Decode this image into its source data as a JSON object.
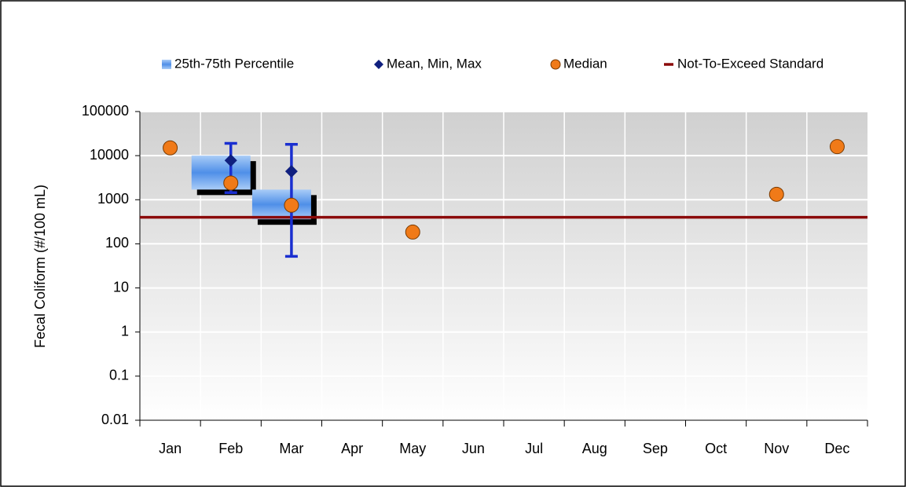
{
  "chart_data": {
    "type": "box",
    "y_label": "Fecal Coliform (#/100 mL)",
    "categories": [
      "Jan",
      "Feb",
      "Mar",
      "Apr",
      "May",
      "Jun",
      "Jul",
      "Aug",
      "Sep",
      "Oct",
      "Nov",
      "Dec"
    ],
    "log_scale": true,
    "ylim": [
      0.01,
      100000
    ],
    "yticks": [
      0.01,
      0.1,
      1,
      10,
      100,
      1000,
      10000,
      100000
    ],
    "grid": true,
    "legend": "top",
    "percentile": {
      "name": "25th-75th Percentile",
      "color": "#4f8fe8",
      "q1": [
        null,
        1700,
        360,
        null,
        null,
        null,
        null,
        null,
        null,
        null,
        null,
        null
      ],
      "q3": [
        null,
        10000,
        1700,
        null,
        null,
        null,
        null,
        null,
        null,
        null,
        null,
        null
      ]
    },
    "mean": {
      "name": "Mean, Min, Max",
      "color": "#10207f",
      "values": [
        null,
        7800,
        4400,
        null,
        null,
        null,
        null,
        null,
        null,
        null,
        null,
        null
      ],
      "min": [
        null,
        1450,
        52,
        null,
        null,
        null,
        null,
        null,
        null,
        null,
        null,
        null
      ],
      "max": [
        null,
        19000,
        18000,
        null,
        null,
        null,
        null,
        null,
        null,
        null,
        null,
        null
      ],
      "bar_color": "#1a2fd0"
    },
    "median": {
      "name": "Median",
      "color": "#f07a18",
      "values": [
        15000,
        2400,
        750,
        null,
        185,
        null,
        null,
        null,
        null,
        null,
        1330,
        16000
      ]
    },
    "standard": {
      "name": "Not-To-Exceed Standard",
      "color": "#8b0a0a",
      "value": 400
    }
  }
}
